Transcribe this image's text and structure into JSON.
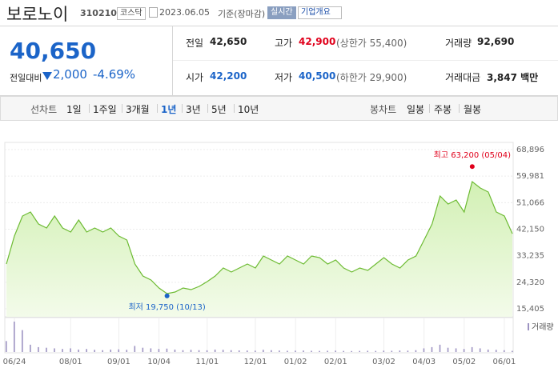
{
  "header": {
    "title": "보로노이",
    "code": "310210",
    "market": "코스닥",
    "date": "2023.06.05",
    "basis": "기준(장마감)",
    "realtime": "실시간",
    "company": "기업개요"
  },
  "quote": {
    "price": "40,650",
    "change_label": "전일대비",
    "change": "2,000",
    "change_rate": "-4.69%",
    "rows": [
      [
        [
          "전일",
          "42,650",
          ""
        ],
        [
          "고가",
          "42,900",
          "(상한가 55,400)"
        ],
        [
          "거래량",
          "92,690",
          ""
        ]
      ],
      [
        [
          "시가",
          "42,200",
          ""
        ],
        [
          "저가",
          "40,500",
          "(하한가 29,900)"
        ],
        [
          "거래대금",
          "3,847 백만",
          ""
        ]
      ]
    ]
  },
  "tabs": {
    "line_label": "선차트",
    "line_periods": [
      "1일",
      "1주일",
      "3개월",
      "1년",
      "3년",
      "5년",
      "10년"
    ],
    "selected": "1년",
    "candle_label": "봉차트",
    "candle_periods": [
      "일봉",
      "주봉",
      "월봉"
    ]
  },
  "chart_data": {
    "type": "area",
    "color": "#6dbb33",
    "fill": "#e3f5cf",
    "categories": [
      null,
      "06/24",
      null,
      null,
      null,
      null,
      null,
      null,
      "08/01",
      null,
      null,
      null,
      null,
      null,
      "09/01",
      null,
      null,
      null,
      null,
      "10/04",
      null,
      null,
      null,
      null,
      null,
      "11/01",
      null,
      null,
      null,
      null,
      null,
      "12/01",
      null,
      null,
      null,
      null,
      "01/02",
      null,
      null,
      null,
      null,
      "02/01",
      null,
      null,
      null,
      null,
      null,
      "03/02",
      null,
      null,
      null,
      null,
      "04/03",
      null,
      null,
      null,
      null,
      "05/02",
      null,
      null,
      null,
      null,
      "06/01",
      null
    ],
    "values": [
      30460,
      39870,
      46590,
      47930,
      43900,
      42550,
      46590,
      42550,
      41210,
      45240,
      41210,
      42550,
      41210,
      42550,
      39870,
      38520,
      30460,
      26430,
      25080,
      22390,
      20500,
      21050,
      22390,
      21860,
      22930,
      24540,
      26430,
      29120,
      27770,
      29120,
      30460,
      29120,
      33140,
      31800,
      30460,
      33140,
      31800,
      30460,
      33140,
      32610,
      30460,
      31800,
      29120,
      27770,
      29120,
      28310,
      30460,
      32610,
      30460,
      29120,
      31800,
      33140,
      38520,
      43900,
      53300,
      50620,
      51960,
      47930,
      58150,
      55990,
      54650,
      47930,
      46590,
      40650
    ],
    "ylim": [
      15405,
      68896
    ],
    "yticks": [
      {
        "value": 15405,
        "label": "15,405"
      },
      {
        "value": 24320,
        "label": "24,320"
      },
      {
        "value": 33235,
        "label": "33,235"
      },
      {
        "value": 42150,
        "label": "42,150"
      },
      {
        "value": 51066,
        "label": "51,066"
      },
      {
        "value": 59981,
        "label": "59,981"
      },
      {
        "value": 68896,
        "label": "68,896"
      }
    ],
    "grid": true,
    "high": {
      "index": 58,
      "value": 63200,
      "label": "최고 63,200 (05/04)",
      "color": "#e0001b"
    },
    "low": {
      "index": 20,
      "value": 19750,
      "label": "최저 19,750 (10/13)",
      "color": "#1b64c8"
    },
    "volume": {
      "name": "거래량",
      "color": "#9d93c2",
      "values": [
        900000,
        2500000,
        1800000,
        600000,
        400000,
        350000,
        300000,
        250000,
        300000,
        200000,
        250000,
        180000,
        150000,
        200000,
        220000,
        180000,
        500000,
        350000,
        300000,
        250000,
        280000,
        200000,
        150000,
        180000,
        150000,
        140000,
        200000,
        180000,
        150000,
        130000,
        120000,
        110000,
        180000,
        150000,
        120000,
        100000,
        110000,
        120000,
        100000,
        90000,
        100000,
        110000,
        90000,
        80000,
        90000,
        100000,
        90000,
        110000,
        100000,
        120000,
        110000,
        150000,
        300000,
        400000,
        600000,
        350000,
        300000,
        250000,
        400000,
        300000,
        200000,
        180000,
        150000,
        92690
      ]
    }
  }
}
